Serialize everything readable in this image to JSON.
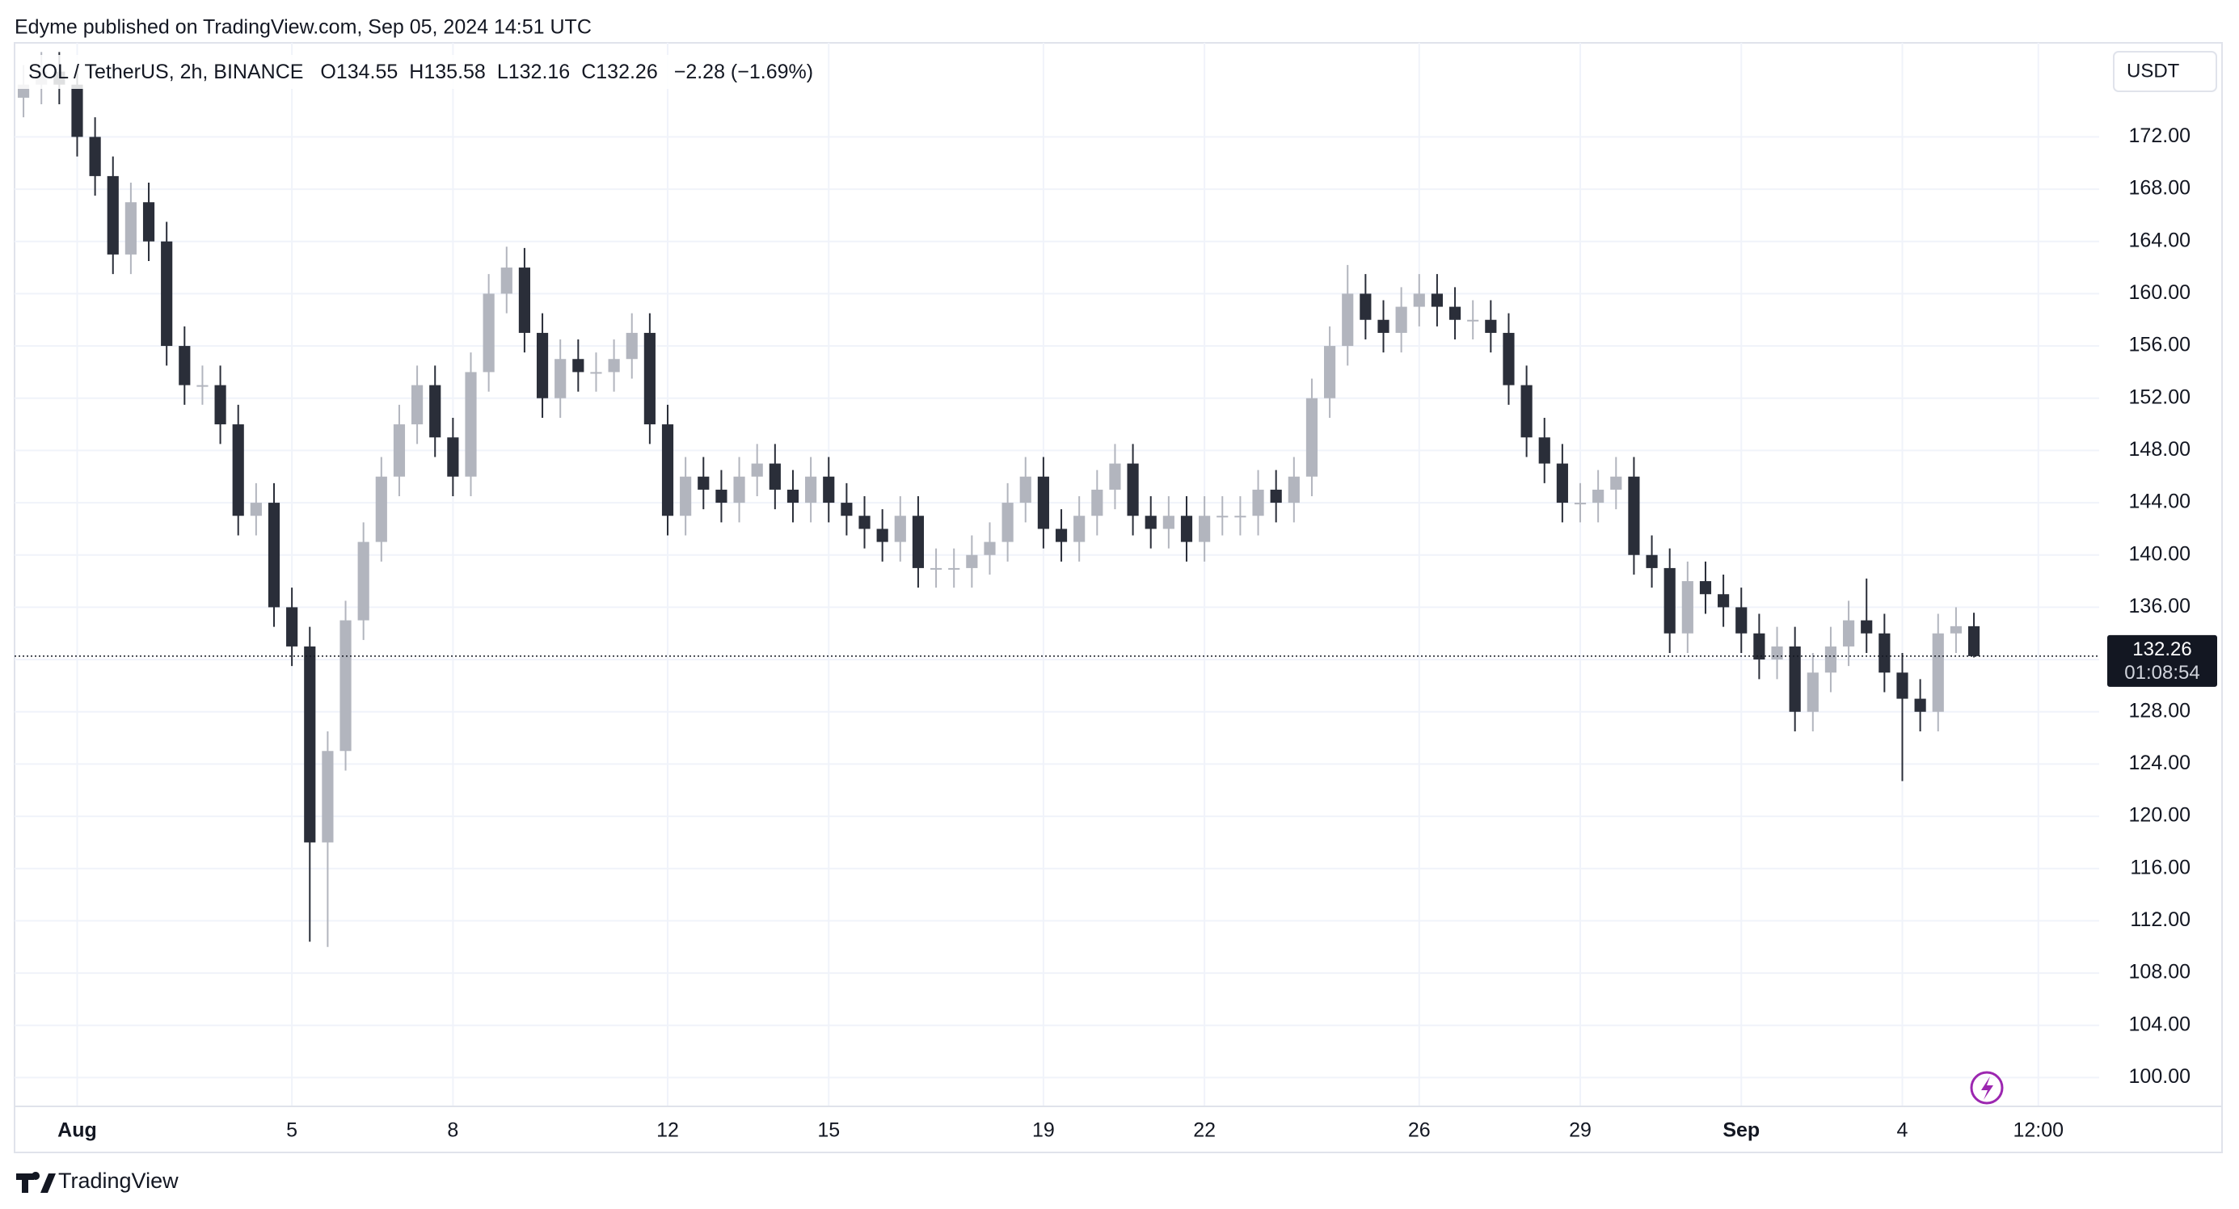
{
  "header": {
    "published": "Edyme published on TradingView.com, Sep 05, 2024 14:51 UTC",
    "symbol": "SOL / TetherUS, 2h, BINANCE",
    "legend": [
      "O134.55",
      "H135.58",
      "L132.16",
      "C132.26",
      "−2.28 (−1.69%)"
    ],
    "currency": "USDT"
  },
  "chart_data": {
    "type": "candlestick",
    "open": [
      175,
      176,
      177,
      176,
      172,
      169,
      163,
      167,
      164,
      156,
      153,
      153,
      150,
      143,
      144,
      136,
      133,
      118,
      125,
      135,
      141,
      146,
      150,
      153,
      149,
      146,
      154,
      160,
      162,
      157,
      152,
      155,
      154,
      154,
      155,
      157,
      150,
      143,
      146,
      145,
      144,
      146,
      147,
      145,
      144,
      146,
      144,
      143,
      142,
      141,
      143,
      139,
      139,
      139,
      140,
      141,
      144,
      146,
      142,
      141,
      143,
      145,
      147,
      143,
      142,
      143,
      141,
      143,
      143,
      143,
      145,
      144,
      146,
      152,
      156,
      160,
      158,
      157,
      159,
      160,
      159,
      158,
      158,
      157,
      153,
      149,
      147,
      144,
      144,
      145,
      146,
      140,
      139,
      134,
      138,
      137,
      136,
      134,
      132,
      133,
      128,
      131,
      133,
      135,
      134,
      131,
      129,
      128,
      134,
      134.55
    ],
    "high": [
      177.5,
      178.5,
      178.5,
      177.5,
      173.5,
      170.5,
      168.5,
      168.5,
      165.5,
      157.5,
      154.5,
      154.5,
      151.5,
      145.5,
      145.5,
      137.5,
      134.5,
      126.5,
      136.5,
      142.5,
      147.5,
      151.5,
      154.5,
      154.5,
      150.5,
      155.5,
      161.5,
      163.6,
      163.5,
      158.5,
      156.5,
      156.5,
      155.5,
      156.5,
      158.5,
      158.5,
      151.5,
      147.5,
      147.5,
      146.5,
      147.5,
      148.5,
      148.5,
      146.5,
      147.5,
      147.5,
      145.5,
      144.5,
      143.5,
      144.5,
      144.5,
      140.5,
      140.5,
      141.5,
      142.5,
      145.5,
      147.5,
      147.5,
      143.5,
      144.5,
      146.5,
      148.5,
      148.5,
      144.5,
      144.5,
      144.5,
      144.5,
      144.5,
      144.5,
      146.5,
      146.5,
      147.5,
      153.5,
      157.5,
      162.2,
      161.5,
      159.5,
      160.5,
      161.5,
      161.5,
      160.5,
      159.5,
      159.5,
      158.5,
      154.5,
      150.5,
      148.5,
      145.5,
      146.5,
      147.5,
      147.5,
      141.5,
      140.5,
      139.5,
      139.5,
      138.5,
      137.5,
      135.5,
      134.5,
      134.5,
      132.5,
      134.5,
      136.5,
      138.2,
      135.5,
      132.5,
      130.5,
      135.5,
      136,
      135.58
    ],
    "low": [
      173.5,
      174.5,
      174.5,
      170.5,
      167.5,
      161.5,
      161.5,
      162.5,
      154.5,
      151.5,
      151.5,
      148.5,
      141.5,
      141.5,
      134.5,
      131.5,
      110.4,
      110,
      123.5,
      133.5,
      139.5,
      144.5,
      148.5,
      147.5,
      144.5,
      144.5,
      152.5,
      158.5,
      155.5,
      150.5,
      150.5,
      152.5,
      152.5,
      152.5,
      153.5,
      148.5,
      141.5,
      141.5,
      143.5,
      142.5,
      142.5,
      144.5,
      143.5,
      142.5,
      142.5,
      142.5,
      141.5,
      140.5,
      139.5,
      139.5,
      137.5,
      137.5,
      137.5,
      137.5,
      138.5,
      139.5,
      142.5,
      140.5,
      139.5,
      139.5,
      141.5,
      143.5,
      141.5,
      140.5,
      140.5,
      139.5,
      139.5,
      141.5,
      141.5,
      141.5,
      142.5,
      142.5,
      144.5,
      150.5,
      154.5,
      156.5,
      155.5,
      155.5,
      157.5,
      157.5,
      156.5,
      156.5,
      155.5,
      151.5,
      147.5,
      145.5,
      142.5,
      142.5,
      142.5,
      143.5,
      138.5,
      137.5,
      132.5,
      132.5,
      135.5,
      134.5,
      132.5,
      130.5,
      130.5,
      126.5,
      126.5,
      129.5,
      131.5,
      132.5,
      129.5,
      122.7,
      126.5,
      126.5,
      132.5,
      132.16
    ],
    "close": [
      176,
      177,
      176,
      172,
      169,
      163,
      167,
      164,
      156,
      153,
      153,
      150,
      143,
      144,
      136,
      133,
      118,
      125,
      135,
      141,
      146,
      150,
      153,
      149,
      146,
      154,
      160,
      162,
      157,
      152,
      155,
      154,
      154,
      155,
      157,
      150,
      143,
      146,
      145,
      144,
      146,
      147,
      145,
      144,
      146,
      144,
      143,
      142,
      141,
      143,
      139,
      139,
      139,
      140,
      141,
      144,
      146,
      142,
      141,
      143,
      145,
      147,
      143,
      142,
      143,
      141,
      143,
      143,
      143,
      145,
      144,
      146,
      152,
      156,
      160,
      158,
      157,
      159,
      160,
      159,
      158,
      158,
      157,
      153,
      149,
      147,
      144,
      144,
      145,
      146,
      140,
      139,
      134,
      138,
      137,
      136,
      134,
      132,
      133,
      128,
      131,
      133,
      135,
      134,
      131,
      129,
      128,
      134,
      134.55,
      132.26
    ],
    "xlim": [
      -0.5,
      116
    ],
    "xticks": [
      {
        "value": 3,
        "label": "Aug"
      },
      {
        "value": 15,
        "label": "5"
      },
      {
        "value": 24,
        "label": "8"
      },
      {
        "value": 36,
        "label": "12"
      },
      {
        "value": 45,
        "label": "15"
      },
      {
        "value": 57,
        "label": "19"
      },
      {
        "value": 66,
        "label": "22"
      },
      {
        "value": 78,
        "label": "26"
      },
      {
        "value": 87,
        "label": "29"
      },
      {
        "value": 96,
        "label": "Sep"
      },
      {
        "value": 105,
        "label": "4"
      },
      {
        "value": 112.6,
        "label": "12:00"
      }
    ],
    "ylim": [
      97.8,
      179.2
    ],
    "yticks": [
      {
        "value": 100,
        "label": "100.00"
      },
      {
        "value": 104,
        "label": "104.00"
      },
      {
        "value": 108,
        "label": "108.00"
      },
      {
        "value": 112,
        "label": "112.00"
      },
      {
        "value": 116,
        "label": "116.00"
      },
      {
        "value": 120,
        "label": "120.00"
      },
      {
        "value": 124,
        "label": "124.00"
      },
      {
        "value": 128,
        "label": "128.00"
      },
      {
        "value": 132,
        "label": "132.00"
      },
      {
        "value": 136,
        "label": "136.00"
      },
      {
        "value": 140,
        "label": "140.00"
      },
      {
        "value": 144,
        "label": "144.00"
      },
      {
        "value": 148,
        "label": "148.00"
      },
      {
        "value": 152,
        "label": "152.00"
      },
      {
        "value": 156,
        "label": "156.00"
      },
      {
        "value": 160,
        "label": "160.00"
      },
      {
        "value": 164,
        "label": "164.00"
      },
      {
        "value": 168,
        "label": "168.00"
      },
      {
        "value": 172,
        "label": "172.00"
      }
    ],
    "grid": true,
    "up_color": "#b2b5be",
    "down_color": "#2a2e39",
    "last_price": {
      "value": 132.26,
      "label": "132.26"
    },
    "countdown": "01:08:54"
  },
  "footer": {
    "brand": "TradingView"
  }
}
